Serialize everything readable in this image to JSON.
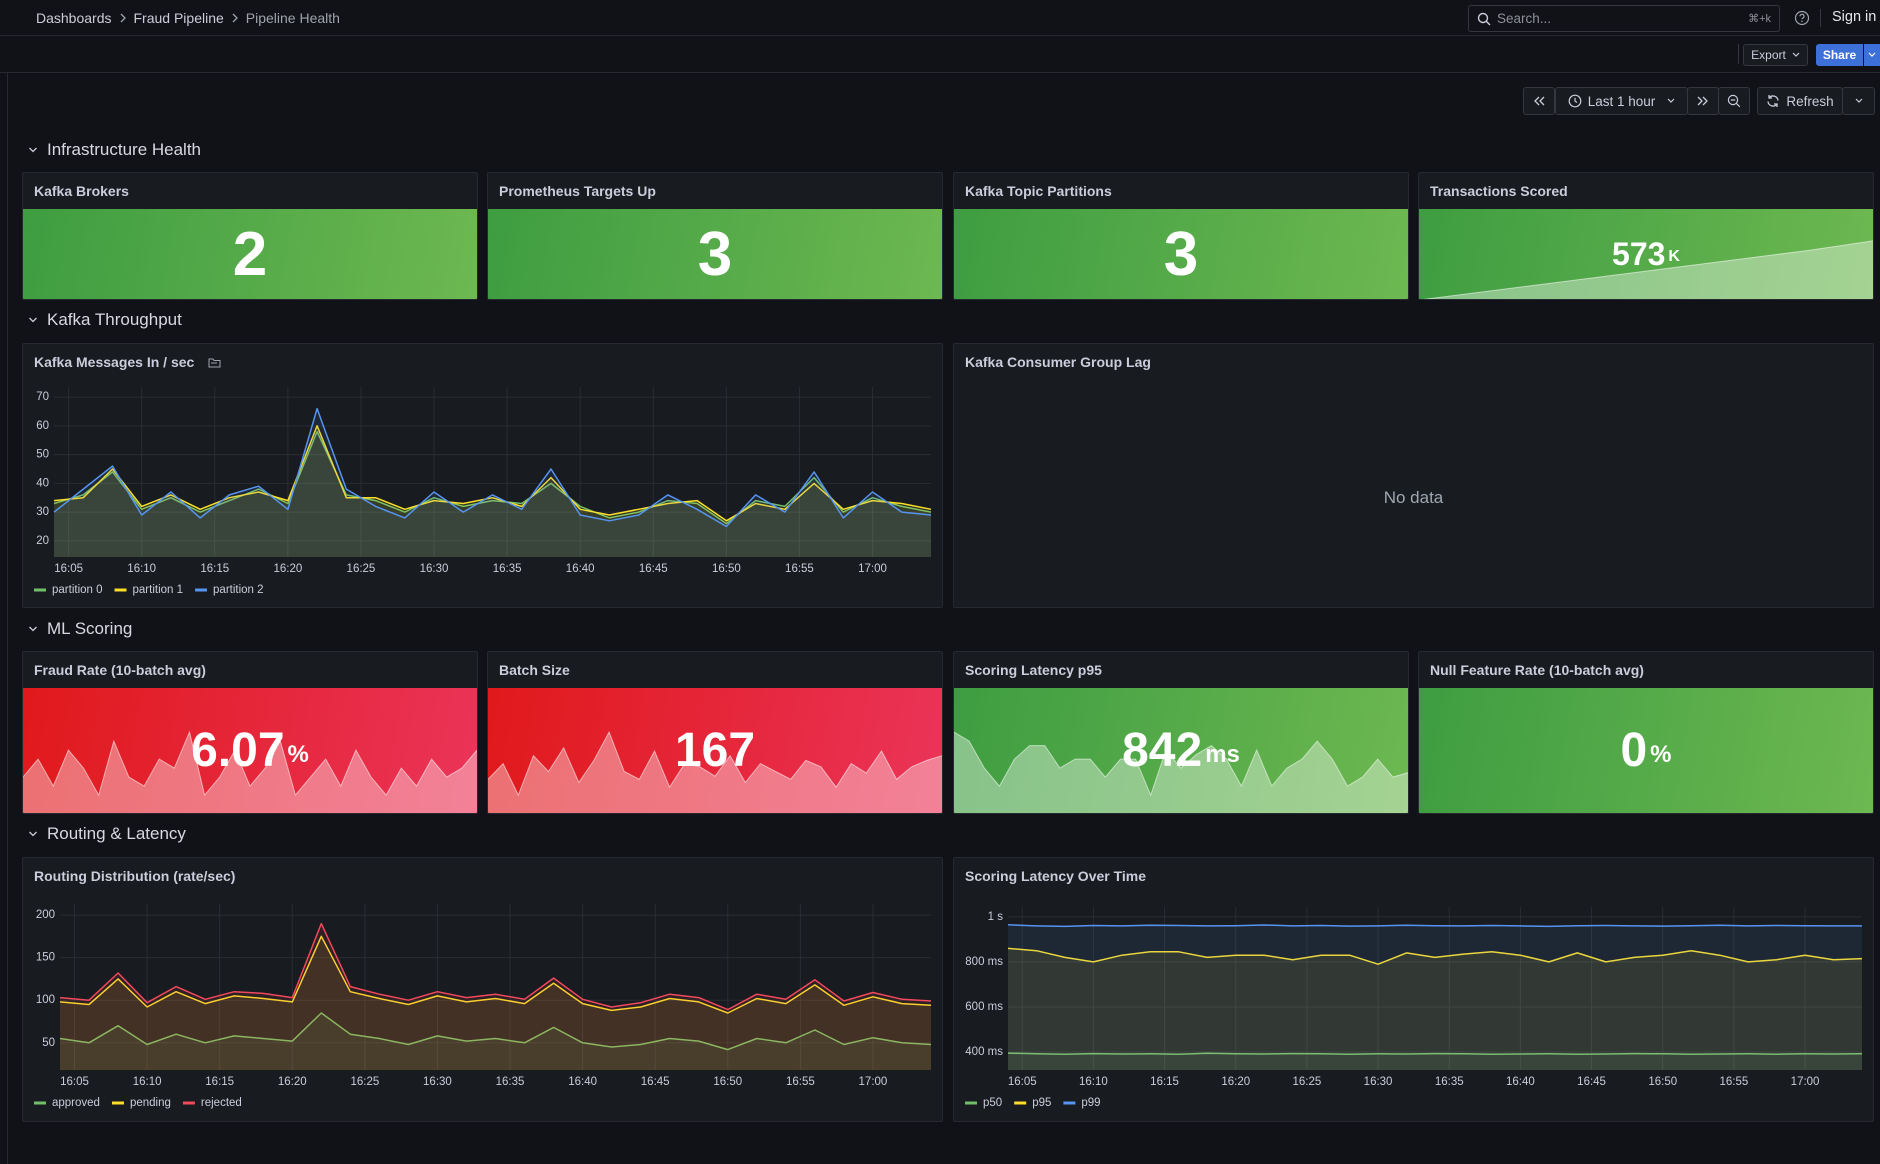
{
  "breadcrumb": [
    "Dashboards",
    "Fraud Pipeline",
    "Pipeline Health"
  ],
  "search": {
    "placeholder": "Search...",
    "shortcut": "⌘+k"
  },
  "sign_in": "Sign in",
  "toolbar": {
    "export": "Export",
    "share": "Share"
  },
  "time_picker": {
    "range": "Last 1 hour",
    "refresh": "Refresh"
  },
  "sections": [
    "Infrastructure Health",
    "Kafka Throughput",
    "ML Scoring",
    "Routing & Latency"
  ],
  "stats": [
    {
      "title": "Kafka Brokers",
      "value": 2,
      "color": [
        "#3e9d41",
        "#6db851"
      ]
    },
    {
      "title": "Prometheus Targets Up",
      "value": 3,
      "color": [
        "#3e9d41",
        "#6db851"
      ]
    },
    {
      "title": "Kafka Topic Partitions",
      "value": 3,
      "color": [
        "#3e9d41",
        "#6db851"
      ]
    },
    {
      "title": "Transactions Scored",
      "value": 573,
      "unit": "K",
      "color": [
        "#3e9d41",
        "#6db851"
      ],
      "sparkline": [
        0,
        80,
        160,
        240,
        320,
        400,
        480,
        573
      ]
    },
    {
      "title": "Fraud Rate (10-batch avg)",
      "value": 6.07,
      "unit": "%",
      "color": [
        "#e0191b",
        "#eb3459"
      ],
      "sparkline": [
        5,
        7,
        4,
        8,
        6,
        3,
        9,
        5,
        4,
        7,
        6,
        10,
        3,
        5,
        8,
        4,
        6,
        9,
        3,
        5,
        7,
        4,
        8,
        5,
        3,
        6,
        4,
        7,
        5,
        6,
        8
      ]
    },
    {
      "title": "Batch Size",
      "value": 167,
      "color": [
        "#e0191b",
        "#eb3459"
      ],
      "sparkline": [
        160,
        170,
        150,
        175,
        165,
        180,
        158,
        172,
        190,
        165,
        160,
        178,
        155,
        170,
        168,
        162,
        175,
        158,
        170,
        165,
        160,
        172,
        168,
        155,
        170,
        164,
        178,
        160,
        168,
        172,
        175
      ]
    },
    {
      "title": "Scoring Latency p95",
      "value": 842,
      "unit": "ms",
      "color": [
        "#3e9d41",
        "#6db851"
      ],
      "sparkline": [
        860,
        850,
        820,
        800,
        830,
        845,
        845,
        820,
        830,
        830,
        810,
        830,
        830,
        790,
        840,
        820,
        835,
        845,
        830,
        800,
        840,
        800,
        820,
        830,
        850,
        830,
        800,
        810,
        830,
        810,
        815
      ]
    },
    {
      "title": "Null Feature Rate (10-batch avg)",
      "value": 0,
      "unit": "%",
      "color": [
        "#3e9d41",
        "#6db851"
      ]
    }
  ],
  "lag_panel": {
    "title": "Kafka Consumer Group Lag",
    "message": "No data"
  },
  "chart_data": [
    {
      "type": "line",
      "title": "Kafka Messages In / sec",
      "x": [
        "16:04",
        "16:06",
        "16:08",
        "16:10",
        "16:12",
        "16:14",
        "16:16",
        "16:18",
        "16:20",
        "16:22",
        "16:24",
        "16:26",
        "16:28",
        "16:30",
        "16:32",
        "16:34",
        "16:36",
        "16:38",
        "16:40",
        "16:42",
        "16:44",
        "16:46",
        "16:48",
        "16:50",
        "16:52",
        "16:54",
        "16:56",
        "16:58",
        "17:00",
        "17:02",
        "17:04"
      ],
      "xlim": [
        "16:04",
        "17:04"
      ],
      "xticks": [
        "16:05",
        "16:10",
        "16:15",
        "16:20",
        "16:25",
        "16:30",
        "16:35",
        "16:40",
        "16:45",
        "16:50",
        "16:55",
        "17:00"
      ],
      "ylim": [
        14.4,
        73.5
      ],
      "yticks": [
        20,
        30,
        40,
        50,
        60,
        70
      ],
      "grid": true,
      "legend": "bottom-left",
      "series": [
        {
          "name": "partition 0",
          "color": "#73bf69",
          "values": [
            33,
            36,
            44,
            31,
            35,
            30,
            34,
            38,
            33,
            58,
            36,
            34,
            30,
            35,
            32,
            34,
            33,
            40,
            32,
            28,
            30,
            34,
            33,
            26,
            34,
            32,
            42,
            30,
            35,
            32,
            30
          ]
        },
        {
          "name": "partition 1",
          "color": "#fade2a",
          "values": [
            34,
            35,
            45,
            32,
            36,
            31,
            35,
            37,
            34,
            60,
            35,
            35,
            31,
            34,
            33,
            35,
            32,
            42,
            31,
            29,
            31,
            33,
            34,
            27,
            33,
            31,
            40,
            31,
            34,
            33,
            31
          ]
        },
        {
          "name": "partition 2",
          "color": "#5794f2",
          "values": [
            30,
            38,
            46,
            29,
            37,
            28,
            36,
            39,
            31,
            66,
            38,
            32,
            28,
            37,
            30,
            36,
            31,
            45,
            29,
            27,
            29,
            36,
            31,
            25,
            36,
            30,
            44,
            28,
            37,
            30,
            29
          ]
        }
      ]
    },
    {
      "type": "line",
      "title": "Routing Distribution (rate/sec)",
      "x": [
        "16:04",
        "16:06",
        "16:08",
        "16:10",
        "16:12",
        "16:14",
        "16:16",
        "16:18",
        "16:20",
        "16:22",
        "16:24",
        "16:26",
        "16:28",
        "16:30",
        "16:32",
        "16:34",
        "16:36",
        "16:38",
        "16:40",
        "16:42",
        "16:44",
        "16:46",
        "16:48",
        "16:50",
        "16:52",
        "16:54",
        "16:56",
        "16:58",
        "17:00",
        "17:02",
        "17:04"
      ],
      "xlim": [
        "16:04",
        "17:04"
      ],
      "xticks": [
        "16:05",
        "16:10",
        "16:15",
        "16:20",
        "16:25",
        "16:30",
        "16:35",
        "16:40",
        "16:45",
        "16:50",
        "16:55",
        "17:00"
      ],
      "ylim": [
        18,
        213
      ],
      "yticks": [
        50,
        100,
        150,
        200
      ],
      "grid": true,
      "legend": "bottom-left",
      "series": [
        {
          "name": "approved",
          "color": "#73bf69",
          "values": [
            55,
            50,
            70,
            48,
            60,
            50,
            58,
            55,
            52,
            85,
            60,
            55,
            48,
            58,
            52,
            55,
            50,
            68,
            50,
            45,
            48,
            55,
            52,
            42,
            55,
            50,
            65,
            48,
            56,
            50,
            48
          ]
        },
        {
          "name": "pending",
          "color": "#fade2a",
          "values": [
            98,
            95,
            125,
            92,
            110,
            96,
            105,
            102,
            98,
            175,
            110,
            102,
            95,
            105,
            98,
            102,
            96,
            120,
            96,
            88,
            92,
            102,
            98,
            85,
            102,
            96,
            118,
            94,
            104,
            96,
            94
          ]
        },
        {
          "name": "rejected",
          "color": "#f2495c",
          "values": [
            103,
            100,
            132,
            97,
            116,
            101,
            110,
            108,
            103,
            190,
            116,
            107,
            100,
            110,
            103,
            107,
            101,
            126,
            101,
            92,
            97,
            107,
            103,
            89,
            107,
            101,
            124,
            99,
            109,
            101,
            99
          ]
        }
      ]
    },
    {
      "type": "line",
      "title": "Scoring Latency Over Time",
      "x": [
        "16:04",
        "16:06",
        "16:08",
        "16:10",
        "16:12",
        "16:14",
        "16:16",
        "16:18",
        "16:20",
        "16:22",
        "16:24",
        "16:26",
        "16:28",
        "16:30",
        "16:32",
        "16:34",
        "16:36",
        "16:38",
        "16:40",
        "16:42",
        "16:44",
        "16:46",
        "16:48",
        "16:50",
        "16:52",
        "16:54",
        "16:56",
        "16:58",
        "17:00",
        "17:02",
        "17:04"
      ],
      "xlim": [
        "16:04",
        "17:04"
      ],
      "xticks": [
        "16:05",
        "16:10",
        "16:15",
        "16:20",
        "16:25",
        "16:30",
        "16:35",
        "16:40",
        "16:45",
        "16:50",
        "16:55",
        "17:00"
      ],
      "ylim": [
        320,
        1044
      ],
      "yticks": [
        {
          "value": 400,
          "label": "400 ms"
        },
        {
          "value": 600,
          "label": "600 ms"
        },
        {
          "value": 800,
          "label": "800 ms"
        },
        {
          "value": 1000,
          "label": "1 s"
        }
      ],
      "grid": true,
      "legend": "bottom-left",
      "series": [
        {
          "name": "p50",
          "color": "#73bf69",
          "values": [
            395,
            392,
            390,
            393,
            391,
            392,
            390,
            394,
            392,
            391,
            393,
            392,
            390,
            392,
            391,
            393,
            392,
            390,
            391,
            392,
            390,
            391,
            393,
            392,
            390,
            391,
            392,
            390,
            392,
            391,
            392
          ]
        },
        {
          "name": "p95",
          "color": "#fade2a",
          "values": [
            860,
            850,
            820,
            800,
            830,
            845,
            845,
            820,
            830,
            830,
            810,
            830,
            830,
            790,
            840,
            820,
            835,
            845,
            830,
            800,
            840,
            800,
            820,
            830,
            850,
            830,
            800,
            810,
            830,
            810,
            815
          ]
        },
        {
          "name": "p99",
          "color": "#5794f2",
          "values": [
            965,
            960,
            958,
            962,
            960,
            963,
            962,
            960,
            961,
            964,
            960,
            962,
            959,
            960,
            963,
            961,
            960,
            962,
            960,
            958,
            961,
            962,
            960,
            959,
            961,
            963,
            960,
            962,
            961,
            960,
            960
          ]
        }
      ]
    }
  ]
}
